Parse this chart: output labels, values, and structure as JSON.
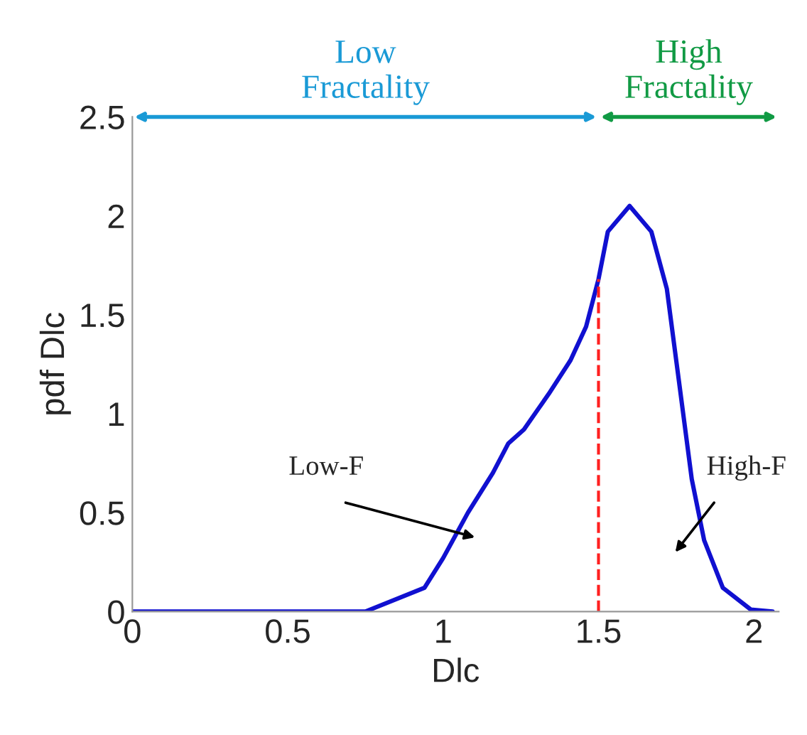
{
  "chart_data": {
    "type": "line",
    "xlabel": "Dlc",
    "ylabel": "pdf Dlc",
    "x": [
      0,
      0.75,
      0.94,
      1.0,
      1.08,
      1.16,
      1.21,
      1.26,
      1.34,
      1.41,
      1.46,
      1.5,
      1.53,
      1.6,
      1.67,
      1.72,
      1.76,
      1.8,
      1.84,
      1.9,
      1.99,
      2.06
    ],
    "series": [
      {
        "color": "#1010d0",
        "values": [
          0,
          0,
          0.12,
          0.27,
          0.5,
          0.7,
          0.85,
          0.92,
          1.1,
          1.27,
          1.44,
          1.68,
          1.92,
          2.05,
          1.92,
          1.63,
          1.15,
          0.67,
          0.36,
          0.12,
          0.01,
          0
        ]
      }
    ],
    "xlim": [
      0,
      2.08
    ],
    "ylim": [
      0,
      2.5
    ],
    "xticks": [
      0,
      0.5,
      1,
      1.5,
      2
    ],
    "yticks": [
      0,
      0.5,
      1,
      1.5,
      2,
      2.5
    ],
    "grid": false,
    "legend": false,
    "line_style": "solid",
    "marker": "none",
    "ref_lines": [
      {
        "axis": "x",
        "value": 1.5,
        "color": "#ff2020",
        "line_style": "dashed"
      }
    ],
    "annotations": [
      "Low\nFractality",
      "High\nFractality",
      "Low-F",
      "High-F"
    ]
  }
}
